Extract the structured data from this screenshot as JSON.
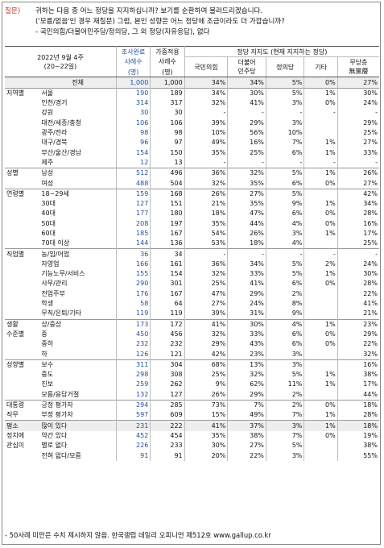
{
  "question": {
    "tag": "질문)",
    "lines": [
      "귀하는 다음 중 어느 정당을 지지하십니까? 보기를 순환하여 불러드리겠습니다.",
      "('모름/없음'인 경우 재질문) 그럼, 본인 성향은 어느 정당에 조금이라도 더 가깝습니까?",
      "- 국민의힘/더불어민주당/정의당, 그 외 정당(자유응답), 없다"
    ]
  },
  "header": {
    "date": "2022년 9월 4주",
    "date_range": "(20~22일)",
    "survey_done": "조사완료",
    "weighted": "가중적용",
    "cases_1": "사례수",
    "cases_2": "(명)",
    "support_group": "정당 지지도 (현재 지지하는 정당)",
    "ppp": "국민의힘",
    "dp_1": "더불어",
    "dp_2": "민주당",
    "justice": "정의당",
    "other": "기타",
    "none_1": "무당층",
    "none_2": "無黨層"
  },
  "rows": [
    {
      "group": "",
      "label": "전체",
      "n1": "1,000",
      "n2": "1,000",
      "ppp": "34%",
      "dp": "34%",
      "jp": "5%",
      "etc": "0%",
      "none": "27%"
    },
    {
      "group": "지역별",
      "label": "서울",
      "n1": "190",
      "n2": "189",
      "ppp": "34%",
      "dp": "30%",
      "jp": "5%",
      "etc": "1%",
      "none": "30%"
    },
    {
      "group": "",
      "label": "인천/경기",
      "n1": "314",
      "n2": "317",
      "ppp": "32%",
      "dp": "41%",
      "jp": "3%",
      "etc": "0%",
      "none": "24%"
    },
    {
      "group": "",
      "label": "강원",
      "n1": "30",
      "n2": "30",
      "ppp": "-",
      "dp": "-",
      "jp": "-",
      "etc": "-",
      "none": "-"
    },
    {
      "group": "",
      "label": "대전/세종/충청",
      "n1": "106",
      "n2": "106",
      "ppp": "39%",
      "dp": "29%",
      "jp": "3%",
      "etc": "",
      "none": "29%"
    },
    {
      "group": "",
      "label": "광주/전라",
      "n1": "98",
      "n2": "98",
      "ppp": "10%",
      "dp": "56%",
      "jp": "10%",
      "etc": "",
      "none": "25%"
    },
    {
      "group": "",
      "label": "대구/경북",
      "n1": "96",
      "n2": "97",
      "ppp": "49%",
      "dp": "16%",
      "jp": "7%",
      "etc": "1%",
      "none": "27%"
    },
    {
      "group": "",
      "label": "부산/울산/경남",
      "n1": "154",
      "n2": "150",
      "ppp": "35%",
      "dp": "25%",
      "jp": "6%",
      "etc": "1%",
      "none": "33%"
    },
    {
      "group": "",
      "label": "제주",
      "n1": "12",
      "n2": "13",
      "ppp": "-",
      "dp": "-",
      "jp": "-",
      "etc": "-",
      "none": "-"
    },
    {
      "group": "성별",
      "label": "남성",
      "n1": "512",
      "n2": "496",
      "ppp": "36%",
      "dp": "32%",
      "jp": "5%",
      "etc": "1%",
      "none": "26%"
    },
    {
      "group": "",
      "label": "여성",
      "n1": "488",
      "n2": "504",
      "ppp": "32%",
      "dp": "35%",
      "jp": "6%",
      "etc": "0%",
      "none": "27%"
    },
    {
      "group": "연령별",
      "label": "18~29세",
      "n1": "159",
      "n2": "168",
      "ppp": "26%",
      "dp": "27%",
      "jp": "5%",
      "etc": "",
      "none": "42%"
    },
    {
      "group": "",
      "label": "30대",
      "n1": "127",
      "n2": "151",
      "ppp": "21%",
      "dp": "35%",
      "jp": "9%",
      "etc": "1%",
      "none": "34%"
    },
    {
      "group": "",
      "label": "40대",
      "n1": "177",
      "n2": "180",
      "ppp": "18%",
      "dp": "47%",
      "jp": "6%",
      "etc": "0%",
      "none": "28%"
    },
    {
      "group": "",
      "label": "50대",
      "n1": "208",
      "n2": "197",
      "ppp": "35%",
      "dp": "44%",
      "jp": "4%",
      "etc": "0%",
      "none": "16%"
    },
    {
      "group": "",
      "label": "60대",
      "n1": "185",
      "n2": "167",
      "ppp": "54%",
      "dp": "26%",
      "jp": "3%",
      "etc": "1%",
      "none": "17%"
    },
    {
      "group": "",
      "label": "70대 이상",
      "n1": "144",
      "n2": "136",
      "ppp": "53%",
      "dp": "18%",
      "jp": "4%",
      "etc": "",
      "none": "25%"
    },
    {
      "group": "직업별",
      "label": "농/임/어업",
      "n1": "36",
      "n2": "34",
      "ppp": "-",
      "dp": "-",
      "jp": "-",
      "etc": "-",
      "none": "-"
    },
    {
      "group": "",
      "label": "자영업",
      "n1": "166",
      "n2": "161",
      "ppp": "36%",
      "dp": "34%",
      "jp": "5%",
      "etc": "2%",
      "none": "24%"
    },
    {
      "group": "",
      "label": "기능노무/서비스",
      "n1": "155",
      "n2": "154",
      "ppp": "32%",
      "dp": "33%",
      "jp": "5%",
      "etc": "1%",
      "none": "30%"
    },
    {
      "group": "",
      "label": "사무/관리",
      "n1": "290",
      "n2": "301",
      "ppp": "25%",
      "dp": "41%",
      "jp": "6%",
      "etc": "0%",
      "none": "28%"
    },
    {
      "group": "",
      "label": "전업주부",
      "n1": "176",
      "n2": "167",
      "ppp": "47%",
      "dp": "29%",
      "jp": "2%",
      "etc": "",
      "none": "22%"
    },
    {
      "group": "",
      "label": "학생",
      "n1": "58",
      "n2": "64",
      "ppp": "27%",
      "dp": "24%",
      "jp": "8%",
      "etc": "",
      "none": "41%"
    },
    {
      "group": "",
      "label": "무직/은퇴/기타",
      "n1": "119",
      "n2": "119",
      "ppp": "39%",
      "dp": "31%",
      "jp": "9%",
      "etc": "",
      "none": "21%"
    },
    {
      "group": "생활",
      "label": "상/중상",
      "n1": "173",
      "n2": "172",
      "ppp": "41%",
      "dp": "30%",
      "jp": "4%",
      "etc": "1%",
      "none": "23%"
    },
    {
      "group": "수준별",
      "label": "중",
      "n1": "450",
      "n2": "456",
      "ppp": "32%",
      "dp": "33%",
      "jp": "6%",
      "etc": "0%",
      "none": "29%"
    },
    {
      "group": "",
      "label": "중하",
      "n1": "232",
      "n2": "232",
      "ppp": "29%",
      "dp": "43%",
      "jp": "6%",
      "etc": "0%",
      "none": "22%"
    },
    {
      "group": "",
      "label": "하",
      "n1": "126",
      "n2": "121",
      "ppp": "42%",
      "dp": "23%",
      "jp": "3%",
      "etc": "",
      "none": "32%"
    },
    {
      "group": "성향별",
      "label": "보수",
      "n1": "311",
      "n2": "304",
      "ppp": "68%",
      "dp": "13%",
      "jp": "3%",
      "etc": "",
      "none": "16%"
    },
    {
      "group": "",
      "label": "중도",
      "n1": "298",
      "n2": "308",
      "ppp": "25%",
      "dp": "32%",
      "jp": "5%",
      "etc": "1%",
      "none": "38%"
    },
    {
      "group": "",
      "label": "진보",
      "n1": "259",
      "n2": "262",
      "ppp": "9%",
      "dp": "62%",
      "jp": "11%",
      "etc": "1%",
      "none": "17%"
    },
    {
      "group": "",
      "label": "모름/응답거절",
      "n1": "132",
      "n2": "127",
      "ppp": "26%",
      "dp": "29%",
      "jp": "2%",
      "etc": "",
      "none": "44%"
    },
    {
      "group": "대통령",
      "label": "긍정 평가자",
      "n1": "294",
      "n2": "285",
      "ppp": "73%",
      "dp": "7%",
      "jp": "2%",
      "etc": "0%",
      "none": "18%"
    },
    {
      "group": "직무",
      "label": "부정 평가자",
      "n1": "597",
      "n2": "609",
      "ppp": "15%",
      "dp": "49%",
      "jp": "7%",
      "etc": "1%",
      "none": "28%"
    },
    {
      "group": "평소",
      "label": "많이 있다",
      "n1": "231",
      "n2": "222",
      "ppp": "41%",
      "dp": "37%",
      "jp": "3%",
      "etc": "1%",
      "none": "18%"
    },
    {
      "group": "정치에",
      "label": "약간 있다",
      "n1": "452",
      "n2": "454",
      "ppp": "35%",
      "dp": "38%",
      "jp": "7%",
      "etc": "0%",
      "none": "19%"
    },
    {
      "group": "관심이",
      "label": "별로 없다",
      "n1": "226",
      "n2": "233",
      "ppp": "30%",
      "dp": "27%",
      "jp": "5%",
      "etc": "",
      "none": "38%"
    },
    {
      "group": "",
      "label": "전혀 없다/모름",
      "n1": "91",
      "n2": "91",
      "ppp": "20%",
      "dp": "22%",
      "jp": "3%",
      "etc": "",
      "none": "55%"
    }
  ],
  "footer": "- 50사례 미만은 수치 제시하지 않음. 한국갤럽 데일리 오피니언 제512호 www.gallup.co.kr"
}
